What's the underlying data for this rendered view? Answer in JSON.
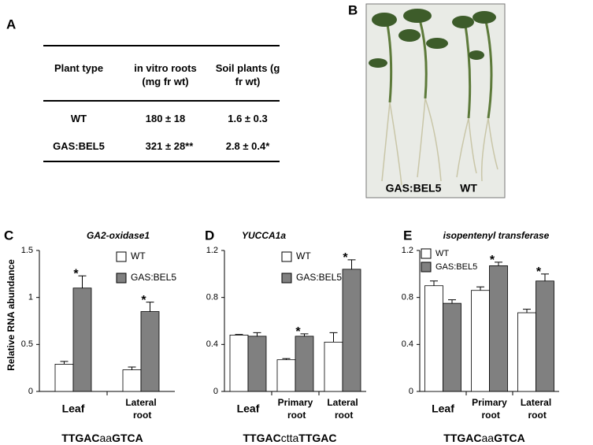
{
  "table": {
    "label": "A",
    "header": [
      "Plant type",
      "in vitro roots (mg fr wt)",
      "Soil plants (g fr wt)"
    ],
    "rows": [
      [
        "WT",
        "180 ± 18",
        "1.6 ± 0.3"
      ],
      [
        "GAS:BEL5",
        "321 ± 28**",
        "2.8 ± 0.4*"
      ]
    ]
  },
  "photo": {
    "label": "B",
    "captions": [
      "GAS:BEL5",
      "WT"
    ]
  },
  "chart_data": [
    {
      "type": "bar",
      "panel_label": "C",
      "title": "GA2-oxidase1",
      "ylabel": "Relative RNA abundance",
      "categories": [
        "Leaf",
        "Lateral root"
      ],
      "series": [
        {
          "name": "WT",
          "color": "#ffffff",
          "values": [
            0.29,
            0.23
          ],
          "errors": [
            0.03,
            0.03
          ],
          "stars": [
            null,
            null
          ]
        },
        {
          "name": "GAS:BEL5",
          "color": "#808080",
          "values": [
            1.1,
            0.85
          ],
          "errors": [
            0.13,
            0.1
          ],
          "stars": [
            "*",
            "*"
          ]
        }
      ],
      "ylim": [
        0,
        1.5
      ],
      "yticks": [
        0,
        0.5,
        1,
        1.5
      ],
      "footer": "TTGACaaGTCA"
    },
    {
      "type": "bar",
      "panel_label": "D",
      "title": "YUCCA1a",
      "categories": [
        "Leaf",
        "Primary root",
        "Lateral root"
      ],
      "series": [
        {
          "name": "WT",
          "color": "#ffffff",
          "values": [
            0.48,
            0.27,
            0.42
          ],
          "errors": [
            0.005,
            0.01,
            0.08
          ],
          "stars": [
            null,
            null,
            null
          ]
        },
        {
          "name": "GAS:BEL5",
          "color": "#808080",
          "values": [
            0.47,
            0.47,
            1.04
          ],
          "errors": [
            0.03,
            0.02,
            0.08
          ],
          "stars": [
            null,
            "*",
            "*"
          ]
        }
      ],
      "ylim": [
        0,
        1.2
      ],
      "yticks": [
        0,
        0.4,
        0.8,
        1.2
      ],
      "footer": "TTGACcttaTTGAC"
    },
    {
      "type": "bar",
      "panel_label": "E",
      "title": "isopentenyl transferase",
      "categories": [
        "Leaf",
        "Primary root",
        "Lateral root"
      ],
      "series": [
        {
          "name": "WT",
          "color": "#ffffff",
          "values": [
            0.9,
            0.86,
            0.67
          ],
          "errors": [
            0.04,
            0.03,
            0.03
          ],
          "stars": [
            null,
            null,
            null
          ]
        },
        {
          "name": "GAS:BEL5",
          "color": "#808080",
          "values": [
            0.75,
            1.07,
            0.94
          ],
          "errors": [
            0.03,
            0.03,
            0.06
          ],
          "stars": [
            null,
            "*",
            "*"
          ]
        }
      ],
      "ylim": [
        0,
        1.2
      ],
      "yticks": [
        0,
        0.4,
        0.8,
        1.2
      ],
      "footer": "TTGACaaGTCA"
    }
  ]
}
